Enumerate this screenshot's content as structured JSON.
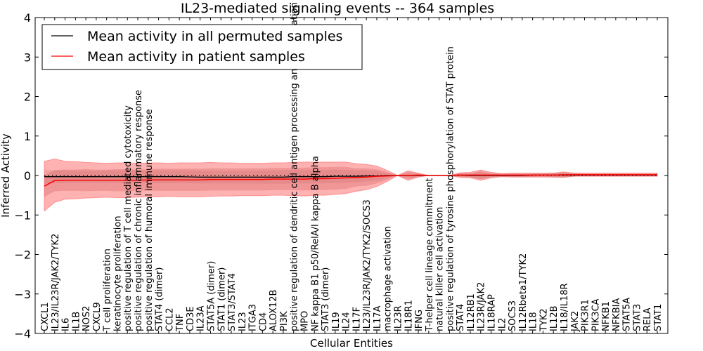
{
  "chart_data": {
    "type": "line",
    "title": "IL23-mediated signaling events -- 364 samples",
    "xlabel": "Cellular Entities",
    "ylabel": "Inferred Activity",
    "ylim": [
      -4,
      4
    ],
    "yticks": [
      4,
      3,
      2,
      1,
      0,
      -1,
      -2,
      -3,
      -4
    ],
    "ytick_labels": [
      "4",
      "3",
      "2",
      "1",
      "0",
      "−1",
      "−2",
      "−3",
      "−4"
    ],
    "grid": false,
    "legend_position": "top-left",
    "legend": [
      {
        "label": "Mean activity in all permuted samples",
        "color": "#000000"
      },
      {
        "label": "Mean activity in patient samples",
        "color": "#ff0000"
      }
    ],
    "categories": [
      "CXCL1",
      "IL23/IL23R/JAK2/TYK2",
      "IL6",
      "IL1B",
      "NOS2",
      "CXCL9",
      "T cell proliferation",
      "keratinocyte proliferation",
      "positive regulation of T cell mediated cytotoxicity",
      "positive regulation of chronic inflammatory response",
      "positive regulation of humoral immune response",
      "STAT4 (dimer)",
      "CCL2",
      "TNF",
      "CD3E",
      "IL23A",
      "STAT5A (dimer)",
      "STAT1 (dimer)",
      "STAT3/STAT4",
      "IL23",
      "ITGA3",
      "CD4",
      "ALOX12B",
      "PI3K",
      "positive regulation of dendritic cell antigen processing and presentation",
      "MPO",
      "NF kappa B1 p50/RelA/I kappa B alpha",
      "STAT3 (dimer)",
      "IL19",
      "IL24",
      "IL17F",
      "IL23/IL23R/JAK2/TYK2/SOCS3",
      "IL17A",
      "macrophage activation",
      "IL23R",
      "IL18R1",
      "IFNG",
      "T-helper cell lineage commitment",
      "natural killer cell activation",
      "positive regulation of tyrosine phosphorylation of STAT protein",
      "STAT4",
      "IL12RB1",
      "IL23R/JAK2",
      "IL18RAP",
      "IL2",
      "SOCS3",
      "IL12Rbeta1/TYK2",
      "IL18",
      "TYK2",
      "IL12B",
      "IL18/IL18R",
      "JAK2",
      "PIK3R1",
      "PIK3CA",
      "NFKB1",
      "NFKBIA",
      "STAT5A",
      "STAT3",
      "RELA",
      "STAT1"
    ],
    "series": [
      {
        "name": "Mean activity in all permuted samples",
        "color": "#000000",
        "values": [
          -0.03,
          -0.03,
          -0.03,
          -0.03,
          -0.03,
          -0.03,
          -0.03,
          -0.03,
          -0.03,
          -0.03,
          -0.03,
          -0.03,
          -0.03,
          -0.03,
          -0.035,
          -0.04,
          -0.04,
          -0.04,
          -0.04,
          -0.04,
          -0.04,
          -0.04,
          -0.04,
          -0.04,
          -0.03,
          -0.03,
          -0.03,
          -0.03,
          -0.02,
          -0.02,
          -0.02,
          -0.01,
          -0.01,
          0.0,
          0.0,
          0.0,
          0.0,
          0.0,
          0.0,
          0.0,
          0.01,
          0.0,
          0.0,
          0.0,
          0.0,
          0.0,
          0.0,
          0.01,
          0.01,
          0.01,
          0.01,
          0.01,
          0.01,
          0.01,
          0.01,
          0.01,
          0.01,
          0.01,
          0.01,
          0.01
        ],
        "band_outer": [
          0.18,
          0.16,
          0.16,
          0.15,
          0.15,
          0.15,
          0.16,
          0.16,
          0.16,
          0.16,
          0.16,
          0.16,
          0.16,
          0.16,
          0.16,
          0.16,
          0.16,
          0.16,
          0.16,
          0.16,
          0.16,
          0.17,
          0.17,
          0.17,
          0.17,
          0.17,
          0.17,
          0.17,
          0.17,
          0.16,
          0.15,
          0.14,
          0.12,
          0.06,
          0.0,
          0.06,
          0.02,
          0.0,
          0.0,
          0.0,
          0.03,
          0.04,
          0.1,
          0.04,
          0.02,
          0.03,
          0.03,
          0.04,
          0.03,
          0.04,
          0.06,
          0.03,
          0.03,
          0.03,
          0.03,
          0.03,
          0.03,
          0.03,
          0.03,
          0.03
        ]
      },
      {
        "name": "Mean activity in patient samples",
        "color": "#ff0000",
        "values": [
          -0.27,
          -0.13,
          -0.12,
          -0.12,
          -0.12,
          -0.12,
          -0.12,
          -0.12,
          -0.12,
          -0.12,
          -0.11,
          -0.11,
          -0.11,
          -0.11,
          -0.11,
          -0.11,
          -0.1,
          -0.1,
          -0.1,
          -0.1,
          -0.1,
          -0.1,
          -0.09,
          -0.09,
          -0.09,
          -0.09,
          -0.08,
          -0.08,
          -0.07,
          -0.06,
          -0.05,
          -0.04,
          -0.02,
          -0.01,
          0.0,
          0.0,
          0.01,
          0.0,
          0.0,
          0.0,
          0.01,
          0.01,
          0.01,
          0.01,
          0.01,
          0.01,
          0.01,
          0.01,
          0.01,
          0.01,
          0.02,
          0.02,
          0.02,
          0.02,
          0.02,
          0.02,
          0.02,
          0.02,
          0.02,
          0.02
        ],
        "band_inner": [
          0.27,
          0.27,
          0.27,
          0.27,
          0.28,
          0.27,
          0.27,
          0.28,
          0.28,
          0.27,
          0.27,
          0.28,
          0.28,
          0.28,
          0.28,
          0.28,
          0.28,
          0.28,
          0.28,
          0.28,
          0.28,
          0.28,
          0.28,
          0.28,
          0.28,
          0.29,
          0.29,
          0.29,
          0.29,
          0.28,
          0.23,
          0.22,
          0.18,
          0.1,
          0.0,
          0.1,
          0.04,
          0.0,
          0.0,
          0.0,
          0.05,
          0.05,
          0.1,
          0.05,
          0.04,
          0.04,
          0.04,
          0.04,
          0.04,
          0.06,
          0.06,
          0.04,
          0.03,
          0.03,
          0.03,
          0.03,
          0.03,
          0.03,
          0.03,
          0.03
        ],
        "band_outer": [
          0.63,
          0.55,
          0.48,
          0.47,
          0.45,
          0.44,
          0.43,
          0.44,
          0.44,
          0.43,
          0.43,
          0.43,
          0.42,
          0.43,
          0.43,
          0.43,
          0.43,
          0.42,
          0.42,
          0.41,
          0.41,
          0.41,
          0.41,
          0.41,
          0.42,
          0.43,
          0.42,
          0.42,
          0.41,
          0.4,
          0.35,
          0.32,
          0.26,
          0.14,
          0.0,
          0.12,
          0.05,
          0.0,
          0.0,
          0.0,
          0.06,
          0.07,
          0.13,
          0.07,
          0.04,
          0.05,
          0.05,
          0.05,
          0.05,
          0.05,
          0.07,
          0.04,
          0.04,
          0.04,
          0.04,
          0.04,
          0.04,
          0.04,
          0.04,
          0.04
        ]
      }
    ]
  }
}
